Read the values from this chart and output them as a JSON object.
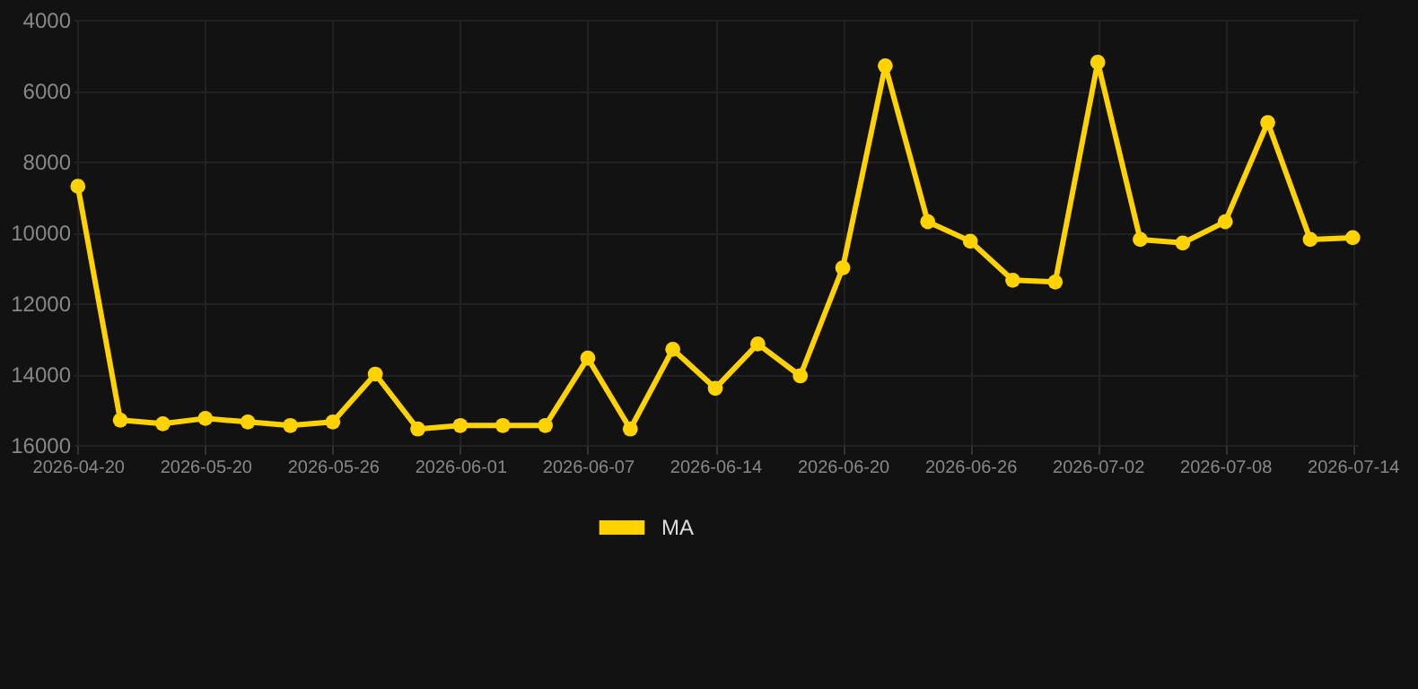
{
  "chart_data": {
    "type": "line",
    "categories": [
      "2026-04-20",
      null,
      null,
      "2026-05-20",
      null,
      null,
      "2026-05-26",
      null,
      null,
      "2026-06-01",
      null,
      null,
      "2026-06-07",
      null,
      null,
      "2026-06-14",
      null,
      null,
      "2026-06-20",
      null,
      null,
      "2026-06-26",
      null,
      null,
      "2026-07-02",
      null,
      null,
      "2026-07-08",
      null,
      null,
      "2026-07-14"
    ],
    "series": [
      {
        "name": "MA",
        "color": "#ffd200",
        "values": [
          8700,
          15300,
          15400,
          15250,
          15350,
          15450,
          15350,
          14000,
          15550,
          15450,
          15450,
          15450,
          13550,
          15550,
          13300,
          14400,
          13150,
          14050,
          11000,
          5300,
          9700,
          10250,
          11350,
          11400,
          5200,
          10200,
          10300,
          9700,
          6900,
          10200,
          10150
        ]
      }
    ],
    "ylim": [
      16000,
      4000
    ],
    "yticks": [
      4000,
      6000,
      8000,
      10000,
      12000,
      14000,
      16000
    ],
    "grid": true,
    "legend": "bottom",
    "marker": "circle",
    "line_style": "solid"
  }
}
